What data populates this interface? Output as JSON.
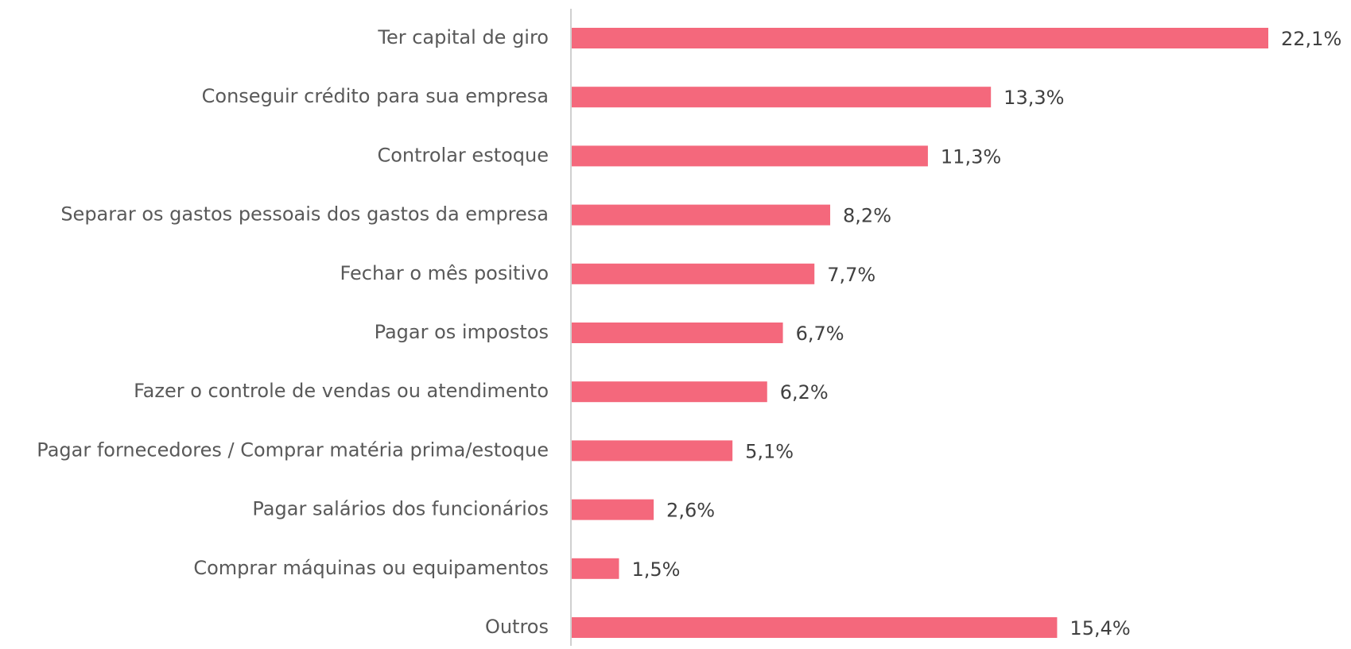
{
  "chart_data": {
    "type": "barh",
    "color": "#f4687c",
    "categories": [
      "Ter capital de giro",
      "Conseguir crédito para sua empresa",
      "Controlar estoque",
      "Separar os gastos pessoais dos gastos da empresa",
      "Fechar o mês positivo",
      "Pagar os impostos",
      "Fazer o controle de vendas ou atendimento",
      "Pagar fornecedores / Comprar matéria prima/estoque",
      "Pagar salários dos funcionários",
      "Comprar máquinas ou equipamentos",
      "Outros"
    ],
    "values": [
      22.1,
      13.3,
      11.3,
      8.2,
      7.7,
      6.7,
      6.2,
      5.1,
      2.6,
      1.5,
      15.4
    ],
    "value_labels": [
      "22,1%",
      "13,3%",
      "11,3%",
      "8,2%",
      "7,7%",
      "6,7%",
      "6,2%",
      "5,1%",
      "2,6%",
      "1,5%",
      "15,4%"
    ]
  }
}
